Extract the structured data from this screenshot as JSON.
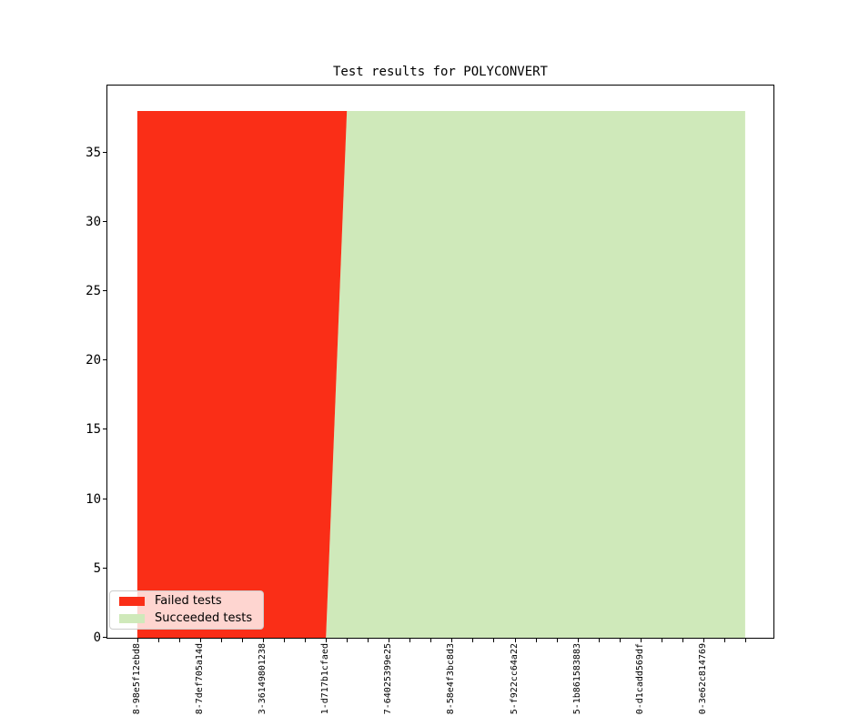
{
  "chart_data": {
    "type": "area",
    "stacked": true,
    "title": "Test results for POLYCONVERT",
    "xlabel": "",
    "ylabel": "",
    "grid": false,
    "ylim": [
      0,
      39.9
    ],
    "yticks": [
      0,
      5,
      10,
      15,
      20,
      25,
      30,
      35
    ],
    "x": {
      "n_points": 30,
      "labeled_every": 3,
      "tick_labels": [
        "8-98e5f12ebd8",
        "8-7def705a14d",
        "3-36149801238",
        "1-d717b1cfaed",
        "7-64025399e25",
        "8-58e4f3bc8d3",
        "5-f922cc64a22",
        "5-1b861583883",
        "0-d1cadd569df",
        "0-3e62c814769"
      ]
    },
    "series": [
      {
        "name": "Failed tests",
        "color": "#fa2e17",
        "values": [
          38,
          38,
          38,
          38,
          38,
          38,
          38,
          38,
          38,
          38,
          0,
          0,
          0,
          0,
          0,
          0,
          0,
          0,
          0,
          0,
          0,
          0,
          0,
          0,
          0,
          0,
          0,
          0,
          0,
          0
        ]
      },
      {
        "name": "Succeeded tests",
        "color": "#cfe9ba",
        "values": [
          0,
          0,
          0,
          0,
          0,
          0,
          0,
          0,
          0,
          0,
          38,
          38,
          38,
          38,
          38,
          38,
          38,
          38,
          38,
          38,
          38,
          38,
          38,
          38,
          38,
          38,
          38,
          38,
          38,
          38
        ]
      }
    ],
    "stack_order_bottom_to_top": [
      "Succeeded tests",
      "Failed tests"
    ],
    "legend_position": "lower left"
  }
}
